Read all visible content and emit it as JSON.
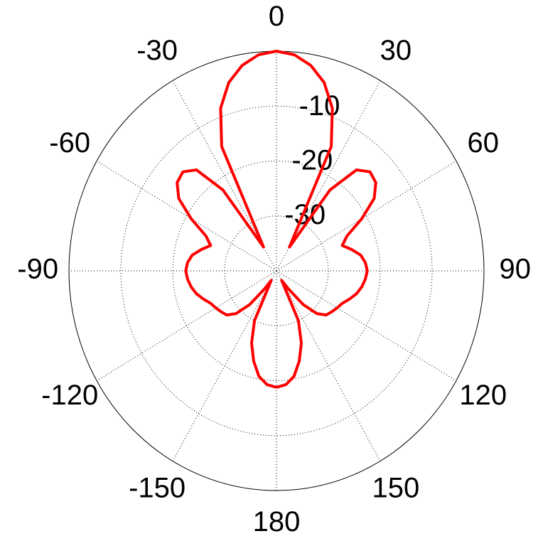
{
  "chart_data": {
    "type": "polar",
    "rlim": [
      -40,
      0
    ],
    "rticks": [
      -10,
      -20,
      -30
    ],
    "thetaticks": [
      0,
      30,
      60,
      90,
      120,
      150,
      180,
      -150,
      -120,
      -90,
      -60,
      -30
    ],
    "grid": true,
    "series": [
      {
        "color": "#ff0000",
        "x": [
          -180,
          -175,
          -170,
          -165,
          -160,
          -155,
          -150,
          -145,
          -140,
          -135,
          -130,
          -125,
          -120,
          -115,
          -110,
          -105,
          -100,
          -95,
          -90,
          -85,
          -80,
          -75,
          -70,
          -65,
          -60,
          -55,
          -50,
          -45,
          -40,
          -35,
          -30,
          -25,
          -20,
          -15,
          -10,
          -5,
          0,
          5,
          10,
          15,
          20,
          25,
          30,
          35,
          40,
          45,
          50,
          55,
          60,
          65,
          70,
          75,
          80,
          85,
          90,
          95,
          100,
          105,
          110,
          115,
          120,
          125,
          130,
          135,
          140,
          145,
          150,
          155,
          160,
          165,
          170,
          175,
          180
        ],
        "values": [
          -18.8,
          -19.2,
          -20.5,
          -23,
          -26,
          -30,
          -38,
          -36,
          -32,
          -29,
          -27.5,
          -27,
          -26.5,
          -26,
          -25,
          -24,
          -23.3,
          -22.8,
          -22.5,
          -22.8,
          -23.5,
          -25,
          -26.5,
          -25,
          -21,
          -17,
          -15,
          -14.5,
          -16,
          -22,
          -35,
          -15,
          -8.5,
          -4.5,
          -2,
          -0.5,
          0,
          -0.5,
          -2,
          -4.5,
          -8.5,
          -15,
          -35,
          -22,
          -16,
          -14.5,
          -15,
          -17,
          -21,
          -25,
          -26.5,
          -25,
          -23.5,
          -22.8,
          -22.5,
          -22.8,
          -23.3,
          -24,
          -25,
          -26,
          -26.5,
          -27,
          -27.5,
          -29,
          -32,
          -36,
          -38,
          -30,
          -26,
          -23,
          -20.5,
          -19.2,
          -18.8
        ]
      }
    ]
  }
}
